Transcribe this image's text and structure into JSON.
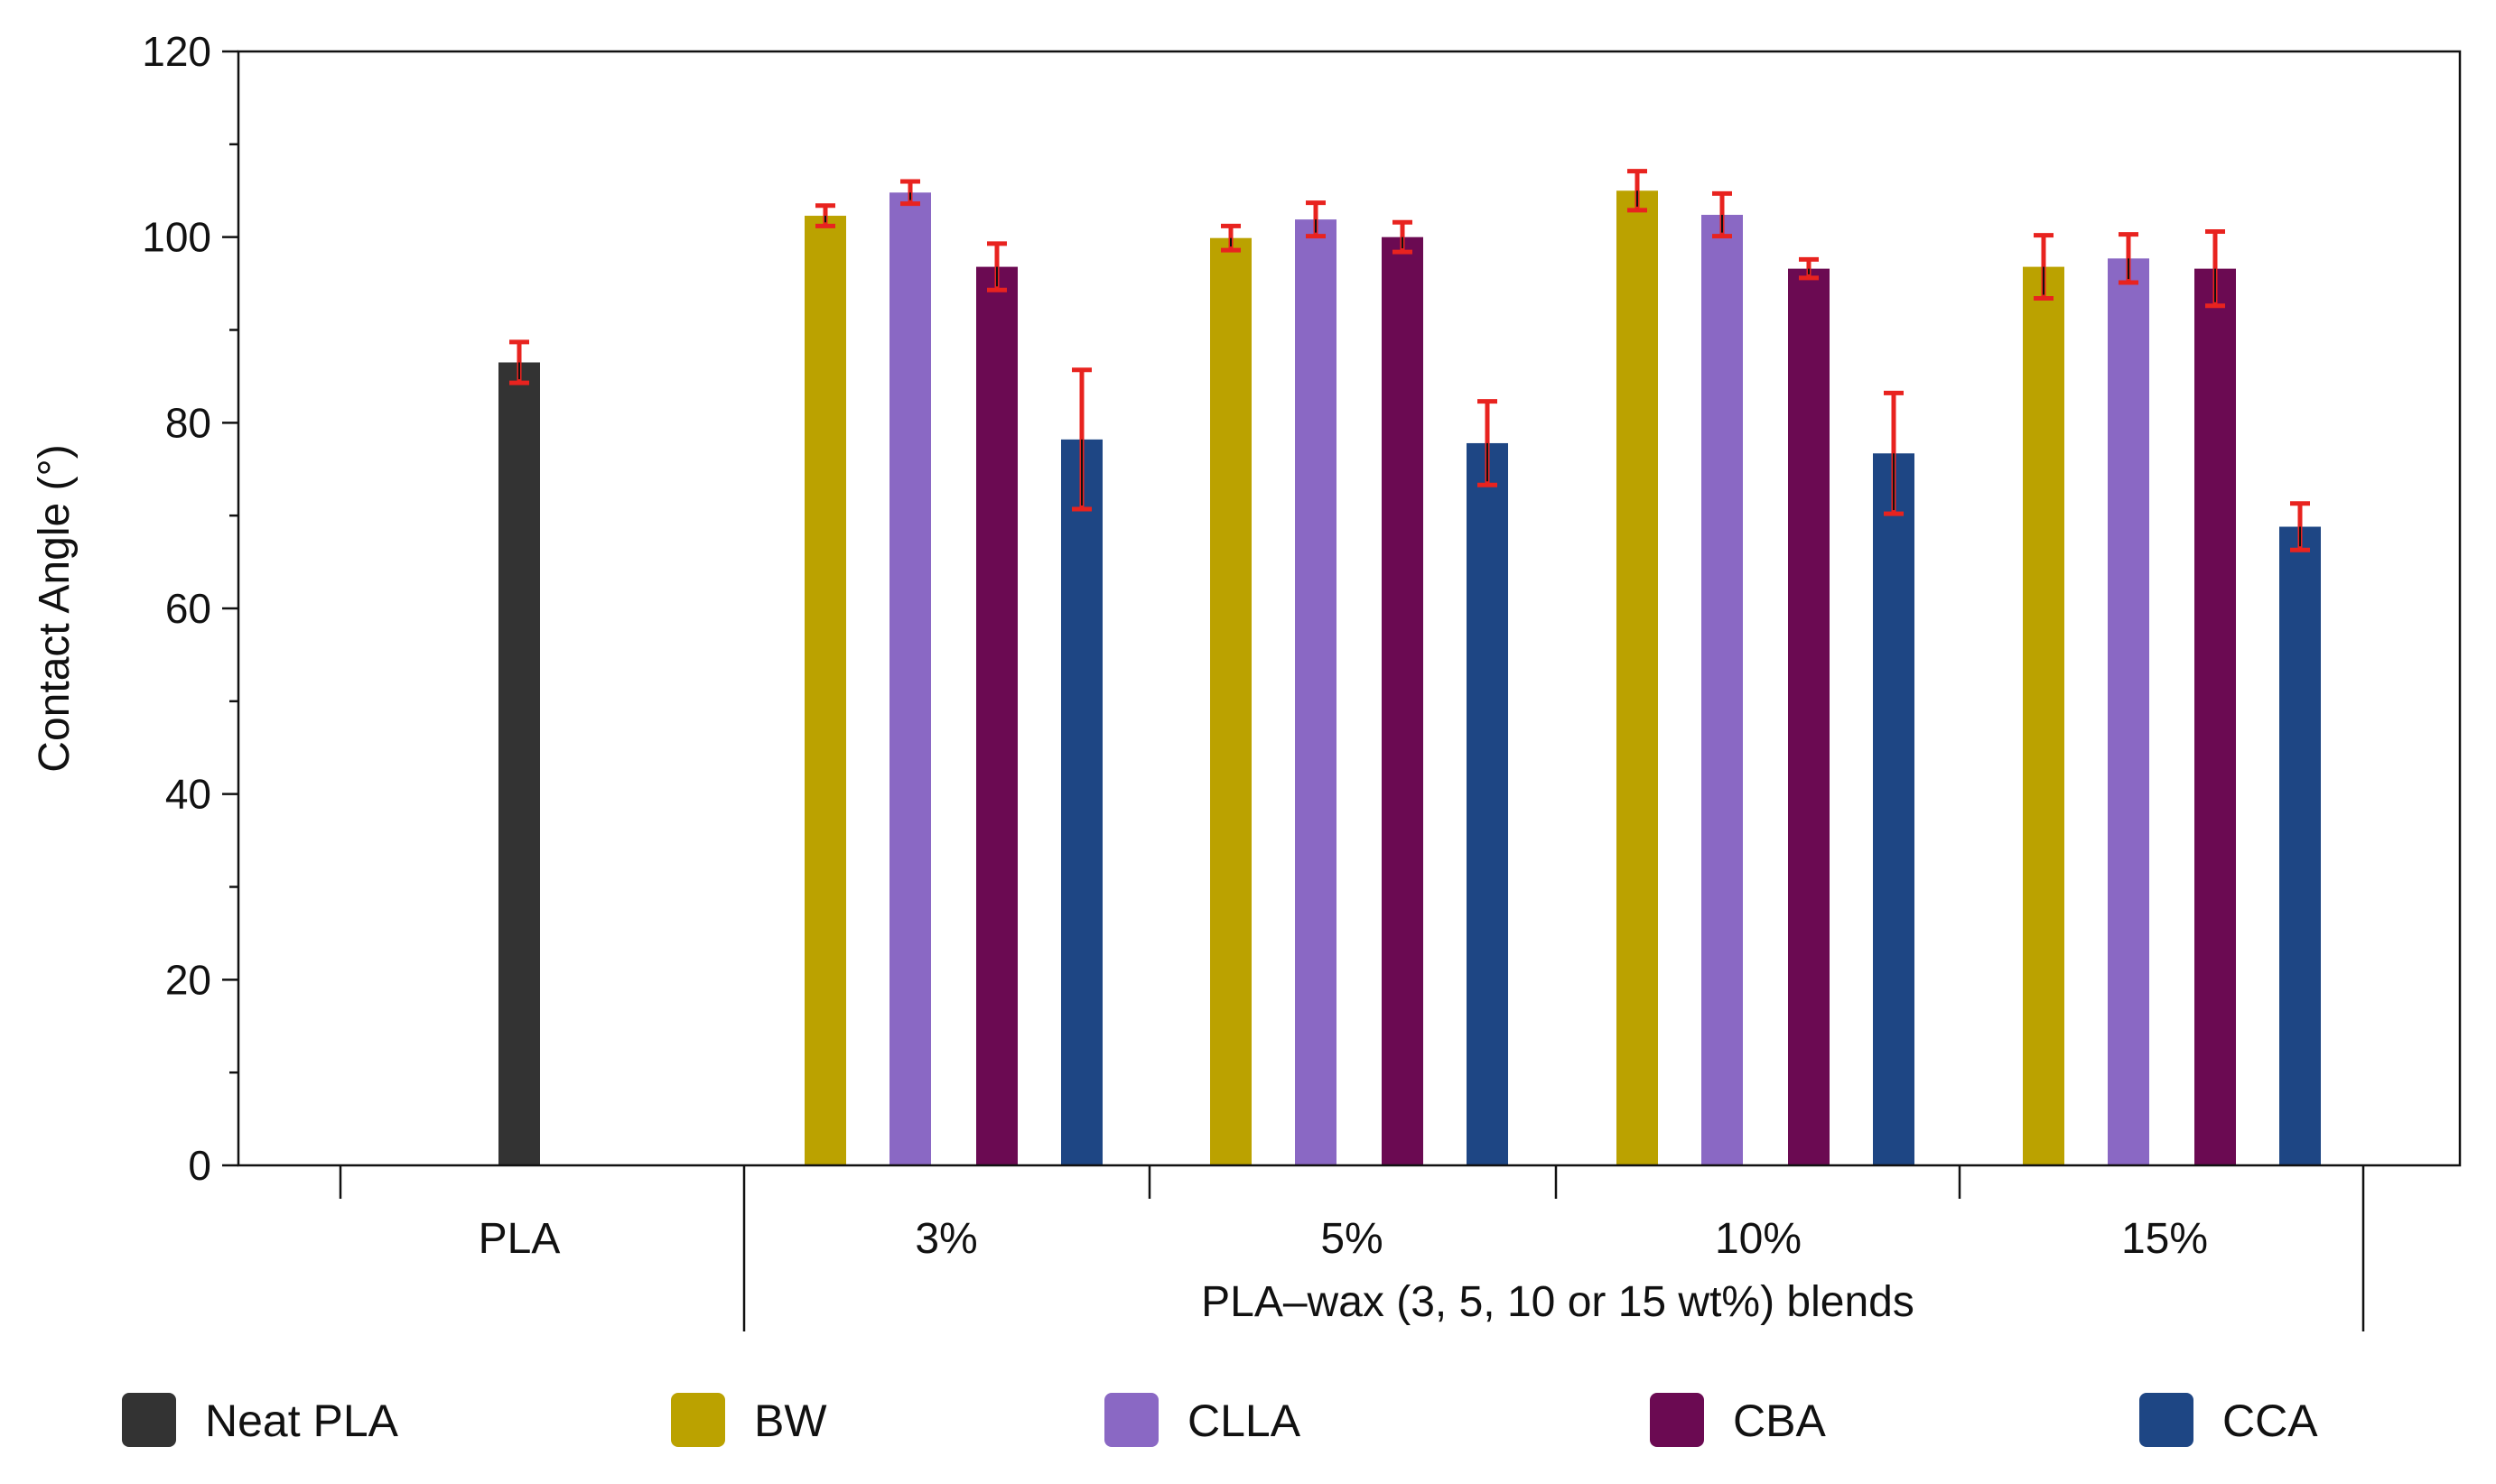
{
  "chart_data": {
    "type": "bar",
    "ylabel": "Contact Angle (°)",
    "ylim": [
      0,
      120
    ],
    "yticks": [
      0,
      20,
      40,
      60,
      80,
      100,
      120
    ],
    "grid": false,
    "groups": [
      {
        "label": "PLA",
        "values": [
          {
            "series": "Neat PLA",
            "value": 86.5,
            "err": 2.2
          }
        ]
      },
      {
        "label": "3%",
        "values": [
          {
            "series": "BW",
            "value": 102.3,
            "err": 1.1
          },
          {
            "series": "CLLA",
            "value": 104.8,
            "err": 1.2
          },
          {
            "series": "CBA",
            "value": 96.8,
            "err": 2.5
          },
          {
            "series": "CCA",
            "value": 78.2,
            "err": 7.5
          }
        ]
      },
      {
        "label": "5%",
        "values": [
          {
            "series": "BW",
            "value": 99.9,
            "err": 1.3
          },
          {
            "series": "CLLA",
            "value": 101.9,
            "err": 1.8
          },
          {
            "series": "CBA",
            "value": 100.0,
            "err": 1.6
          },
          {
            "series": "CCA",
            "value": 77.8,
            "err": 4.5
          }
        ]
      },
      {
        "label": "10%",
        "values": [
          {
            "series": "BW",
            "value": 105.0,
            "err": 2.1
          },
          {
            "series": "CLLA",
            "value": 102.4,
            "err": 2.3
          },
          {
            "series": "CBA",
            "value": 96.6,
            "err": 1.0
          },
          {
            "series": "CCA",
            "value": 76.7,
            "err": 6.5
          }
        ]
      },
      {
        "label": "15%",
        "values": [
          {
            "series": "BW",
            "value": 96.8,
            "err": 3.4
          },
          {
            "series": "CLLA",
            "value": 97.7,
            "err": 2.6
          },
          {
            "series": "CBA",
            "value": 96.6,
            "err": 4.0
          },
          {
            "series": "CCA",
            "value": 68.8,
            "err": 2.5
          }
        ]
      }
    ],
    "blend_group_label": "PLA–wax (3, 5, 10 or 15 wt%) blends",
    "legend": [
      {
        "name": "Neat PLA",
        "color": "#333333"
      },
      {
        "name": "BW",
        "color": "#bba200"
      },
      {
        "name": "CLLA",
        "color": "#8a68c4"
      },
      {
        "name": "CBA",
        "color": "#6b0a52"
      },
      {
        "name": "CCA",
        "color": "#1e4684"
      }
    ],
    "legend_position": "bottom",
    "error_bar_color": "#e8231f",
    "error_bar_inner_color": "#111111"
  }
}
